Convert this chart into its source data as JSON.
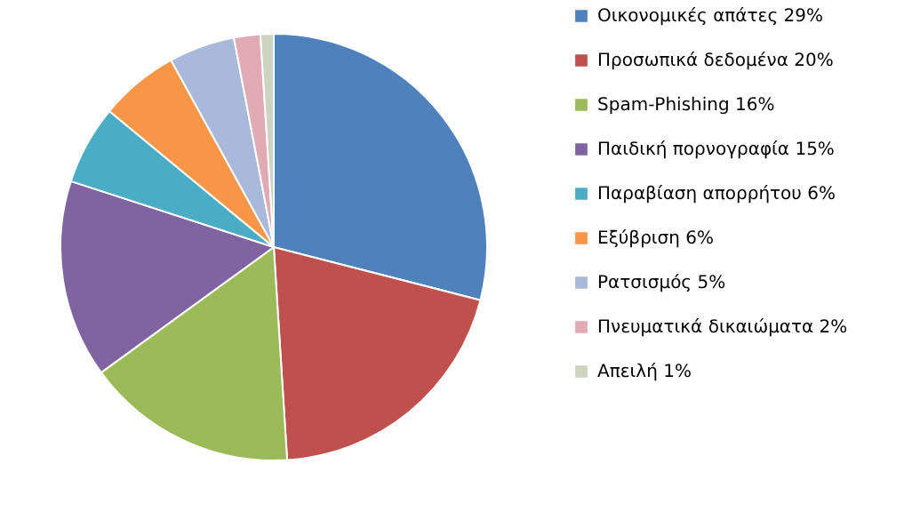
{
  "chart_data": {
    "type": "pie",
    "categories": [
      "Οικονομικές απάτες 29%",
      "Προσωπικά δεδομένα 20%",
      "Spam-Phishing  16%",
      "Παιδική πορνογραφία 15%",
      "Παραβίαση απορρήτου 6%",
      "Εξύβριση 6%",
      "Ρατσισμός 5%",
      "Πνευματικά δικαιώματα 2%",
      "Απειλή 1%"
    ],
    "values": [
      29,
      20,
      16,
      15,
      6,
      6,
      5,
      2,
      1
    ],
    "colors": [
      "#4f81bd",
      "#c0504d",
      "#9bbb59",
      "#8064a2",
      "#4bacc6",
      "#f79646",
      "#a9b9dc",
      "#e2aab4",
      "#cdd5c0"
    ],
    "legend": "right"
  }
}
